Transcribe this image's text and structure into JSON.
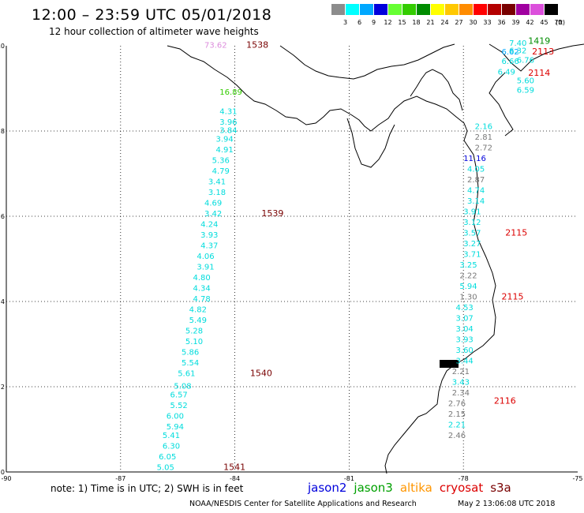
{
  "header": {
    "title": "12:00 – 23:59 UTC 05/01/2018",
    "subtitle": "12 hour collection of altimeter wave heights"
  },
  "color_scale": {
    "unit": "(ft)",
    "bins": [
      {
        "label": "3",
        "color": "#8c8c8c"
      },
      {
        "label": "6",
        "color": "#00ffff"
      },
      {
        "label": "9",
        "color": "#00a8ff"
      },
      {
        "label": "12",
        "color": "#0000dc"
      },
      {
        "label": "15",
        "color": "#66ff33"
      },
      {
        "label": "18",
        "color": "#33cc00"
      },
      {
        "label": "21",
        "color": "#008c00"
      },
      {
        "label": "24",
        "color": "#ffff00"
      },
      {
        "label": "27",
        "color": "#ffc800"
      },
      {
        "label": "30",
        "color": "#ff8c00"
      },
      {
        "label": "33",
        "color": "#ff0000"
      },
      {
        "label": "36",
        "color": "#b40000"
      },
      {
        "label": "39",
        "color": "#780000"
      },
      {
        "label": "42",
        "color": "#a000a0"
      },
      {
        "label": "45",
        "color": "#dc50dc"
      },
      {
        "label": "70",
        "color": "#000000"
      }
    ]
  },
  "axes": {
    "x_ticks": [
      "-90",
      "-87",
      "-84",
      "-81",
      "-78",
      "-75"
    ],
    "y_ticks": [
      "10",
      "8",
      "6",
      "4",
      "2",
      "0"
    ]
  },
  "map_data": {
    "lon_range": [
      -90,
      -75
    ],
    "lat_range": [
      0,
      10
    ],
    "wave_heights": [
      {
        "v": "73.62",
        "lon": -84.8,
        "lat": 9.95,
        "c": "#dc8cdc"
      },
      {
        "v": "16.89",
        "lon": -84.4,
        "lat": 8.85,
        "c": "#33cc00"
      },
      {
        "v": "4.31",
        "lon": -84.4,
        "lat": 8.4,
        "c": "#00dcdc"
      },
      {
        "v": "3.96",
        "lon": -84.4,
        "lat": 8.15,
        "c": "#00dcdc"
      },
      {
        "v": "3.84",
        "lon": -84.4,
        "lat": 7.95,
        "c": "#00dcdc"
      },
      {
        "v": "3.94",
        "lon": -84.5,
        "lat": 7.75,
        "c": "#00dcdc"
      },
      {
        "v": "4.91",
        "lon": -84.5,
        "lat": 7.5,
        "c": "#00dcdc"
      },
      {
        "v": "5.36",
        "lon": -84.6,
        "lat": 7.25,
        "c": "#00dcdc"
      },
      {
        "v": "4.79",
        "lon": -84.6,
        "lat": 7.0,
        "c": "#00dcdc"
      },
      {
        "v": "3.41",
        "lon": -84.7,
        "lat": 6.75,
        "c": "#00dcdc"
      },
      {
        "v": "3.18",
        "lon": -84.7,
        "lat": 6.5,
        "c": "#00dcdc"
      },
      {
        "v": "4.69",
        "lon": -84.8,
        "lat": 6.25,
        "c": "#00dcdc"
      },
      {
        "v": "3.42",
        "lon": -84.8,
        "lat": 6.0,
        "c": "#00dcdc"
      },
      {
        "v": "4.24",
        "lon": -84.9,
        "lat": 5.75,
        "c": "#00dcdc"
      },
      {
        "v": "3.93",
        "lon": -84.9,
        "lat": 5.5,
        "c": "#00dcdc"
      },
      {
        "v": "4.37",
        "lon": -84.9,
        "lat": 5.25,
        "c": "#00dcdc"
      },
      {
        "v": "4.06",
        "lon": -85.0,
        "lat": 5.0,
        "c": "#00dcdc"
      },
      {
        "v": "3.91",
        "lon": -85.0,
        "lat": 4.75,
        "c": "#00dcdc"
      },
      {
        "v": "4.80",
        "lon": -85.1,
        "lat": 4.5,
        "c": "#00dcdc"
      },
      {
        "v": "4.34",
        "lon": -85.1,
        "lat": 4.25,
        "c": "#00dcdc"
      },
      {
        "v": "4.78",
        "lon": -85.1,
        "lat": 4.0,
        "c": "#00dcdc"
      },
      {
        "v": "4.82",
        "lon": -85.2,
        "lat": 3.75,
        "c": "#00dcdc"
      },
      {
        "v": "5.49",
        "lon": -85.2,
        "lat": 3.5,
        "c": "#00dcdc"
      },
      {
        "v": "5.28",
        "lon": -85.3,
        "lat": 3.25,
        "c": "#00dcdc"
      },
      {
        "v": "5.10",
        "lon": -85.3,
        "lat": 3.0,
        "c": "#00dcdc"
      },
      {
        "v": "5.86",
        "lon": -85.4,
        "lat": 2.75,
        "c": "#00dcdc"
      },
      {
        "v": "5.54",
        "lon": -85.4,
        "lat": 2.5,
        "c": "#00dcdc"
      },
      {
        "v": "5.61",
        "lon": -85.5,
        "lat": 2.25,
        "c": "#00dcdc"
      },
      {
        "v": "5.08",
        "lon": -85.6,
        "lat": 1.95,
        "c": "#00dcdc"
      },
      {
        "v": "6.57",
        "lon": -85.7,
        "lat": 1.75,
        "c": "#00dcdc"
      },
      {
        "v": "5.52",
        "lon": -85.7,
        "lat": 1.5,
        "c": "#00dcdc"
      },
      {
        "v": "6.00",
        "lon": -85.8,
        "lat": 1.25,
        "c": "#00dcdc"
      },
      {
        "v": "5.94",
        "lon": -85.8,
        "lat": 1.0,
        "c": "#00dcdc"
      },
      {
        "v": "5.41",
        "lon": -85.9,
        "lat": 0.8,
        "c": "#00dcdc"
      },
      {
        "v": "6.30",
        "lon": -85.9,
        "lat": 0.55,
        "c": "#00dcdc"
      },
      {
        "v": "6.05",
        "lon": -86.0,
        "lat": 0.3,
        "c": "#00dcdc"
      },
      {
        "v": "5.05",
        "lon": -86.05,
        "lat": 0.05,
        "c": "#00dcdc"
      },
      {
        "v": "7.40",
        "lon": -76.8,
        "lat": 10.0,
        "c": "#00dcdc"
      },
      {
        "v": "6.62",
        "lon": -77.0,
        "lat": 9.8,
        "c": "#00a8ff"
      },
      {
        "v": "6.32",
        "lon": -76.8,
        "lat": 9.82,
        "c": "#00dcdc"
      },
      {
        "v": "6.66",
        "lon": -77.0,
        "lat": 9.57,
        "c": "#00dcdc"
      },
      {
        "v": "6.76",
        "lon": -76.6,
        "lat": 9.6,
        "c": "#00dcdc"
      },
      {
        "v": "6.49",
        "lon": -77.1,
        "lat": 9.32,
        "c": "#00dcdc"
      },
      {
        "v": "5.60",
        "lon": -76.6,
        "lat": 9.12,
        "c": "#00dcdc"
      },
      {
        "v": "6.59",
        "lon": -76.6,
        "lat": 8.9,
        "c": "#00dcdc"
      },
      {
        "v": "2.16",
        "lon": -77.7,
        "lat": 8.05,
        "c": "#00dcdc"
      },
      {
        "v": "2.81",
        "lon": -77.7,
        "lat": 7.8,
        "c": "#787878"
      },
      {
        "v": "2.72",
        "lon": -77.7,
        "lat": 7.55,
        "c": "#787878"
      },
      {
        "v": "11.16",
        "lon": -78.0,
        "lat": 7.3,
        "c": "#0000dc"
      },
      {
        "v": "4.05",
        "lon": -77.9,
        "lat": 7.05,
        "c": "#00dcdc"
      },
      {
        "v": "2.87",
        "lon": -77.9,
        "lat": 6.8,
        "c": "#787878"
      },
      {
        "v": "4.74",
        "lon": -77.9,
        "lat": 6.55,
        "c": "#00dcdc"
      },
      {
        "v": "3.14",
        "lon": -77.9,
        "lat": 6.3,
        "c": "#00dcdc"
      },
      {
        "v": "3.91",
        "lon": -78.0,
        "lat": 6.05,
        "c": "#00dcdc"
      },
      {
        "v": "3.12",
        "lon": -78.0,
        "lat": 5.8,
        "c": "#00dcdc"
      },
      {
        "v": "3.57",
        "lon": -78.0,
        "lat": 5.55,
        "c": "#00dcdc"
      },
      {
        "v": "3.27",
        "lon": -78.0,
        "lat": 5.3,
        "c": "#00dcdc"
      },
      {
        "v": "3.71",
        "lon": -78.0,
        "lat": 5.05,
        "c": "#00dcdc"
      },
      {
        "v": "3.25",
        "lon": -78.1,
        "lat": 4.8,
        "c": "#00dcdc"
      },
      {
        "v": "2.22",
        "lon": -78.1,
        "lat": 4.55,
        "c": "#787878"
      },
      {
        "v": "5.94",
        "lon": -78.1,
        "lat": 4.3,
        "c": "#00dcdc"
      },
      {
        "v": "1.30",
        "lon": -78.1,
        "lat": 4.05,
        "c": "#787878"
      },
      {
        "v": "4.53",
        "lon": -78.2,
        "lat": 3.8,
        "c": "#00dcdc"
      },
      {
        "v": "3.07",
        "lon": -78.2,
        "lat": 3.55,
        "c": "#00dcdc"
      },
      {
        "v": "3.04",
        "lon": -78.2,
        "lat": 3.3,
        "c": "#00dcdc"
      },
      {
        "v": "3.93",
        "lon": -78.2,
        "lat": 3.05,
        "c": "#00dcdc"
      },
      {
        "v": "3.60",
        "lon": -78.2,
        "lat": 2.8,
        "c": "#00dcdc"
      },
      {
        "v": "3.44",
        "lon": -78.2,
        "lat": 2.55,
        "c": "#00dcdc"
      },
      {
        "v": "2.21",
        "lon": -78.3,
        "lat": 2.3,
        "c": "#787878"
      },
      {
        "v": "3.43",
        "lon": -78.3,
        "lat": 2.05,
        "c": "#00dcdc"
      },
      {
        "v": "2.34",
        "lon": -78.3,
        "lat": 1.8,
        "c": "#787878"
      },
      {
        "v": "2.76",
        "lon": -78.4,
        "lat": 1.55,
        "c": "#787878"
      },
      {
        "v": "2.15",
        "lon": -78.4,
        "lat": 1.3,
        "c": "#787878"
      },
      {
        "v": "2.21",
        "lon": -78.4,
        "lat": 1.05,
        "c": "#00dcdc"
      },
      {
        "v": "2.46",
        "lon": -78.4,
        "lat": 0.8,
        "c": "#787878"
      }
    ],
    "pass_ids": [
      {
        "v": "1538",
        "lon": -83.7,
        "lat": 9.95,
        "c": "#780000"
      },
      {
        "v": "1419",
        "lon": -76.3,
        "lat": 10.05,
        "c": "#008c00"
      },
      {
        "v": "2113",
        "lon": -76.2,
        "lat": 9.8,
        "c": "#dc0000"
      },
      {
        "v": "2114",
        "lon": -76.3,
        "lat": 9.3,
        "c": "#dc0000"
      },
      {
        "v": "1539",
        "lon": -83.3,
        "lat": 6.0,
        "c": "#780000"
      },
      {
        "v": "2115",
        "lon": -76.9,
        "lat": 5.55,
        "c": "#dc0000"
      },
      {
        "v": "2115",
        "lon": -77.0,
        "lat": 4.05,
        "c": "#dc0000"
      },
      {
        "v": "1540",
        "lon": -83.6,
        "lat": 2.25,
        "c": "#780000"
      },
      {
        "v": "2116",
        "lon": -77.2,
        "lat": 1.6,
        "c": "#dc0000"
      },
      {
        "v": "1541",
        "lon": -84.3,
        "lat": 0.05,
        "c": "#780000"
      }
    ]
  },
  "footer": {
    "note": "note: 1) Time is in UTC; 2) SWH is in feet",
    "satellites": [
      {
        "name": "jason2",
        "color": "#0000dc"
      },
      {
        "name": "jason3",
        "color": "#00a000"
      },
      {
        "name": "altika",
        "color": "#ff9600"
      },
      {
        "name": "cryosat",
        "color": "#dc0000"
      },
      {
        "name": "s3a",
        "color": "#780000"
      }
    ],
    "credit": "NOAA/NESDIS Center for Satellite Applications and Research",
    "timestamp": "May  2 13:06:08 UTC 2018"
  }
}
